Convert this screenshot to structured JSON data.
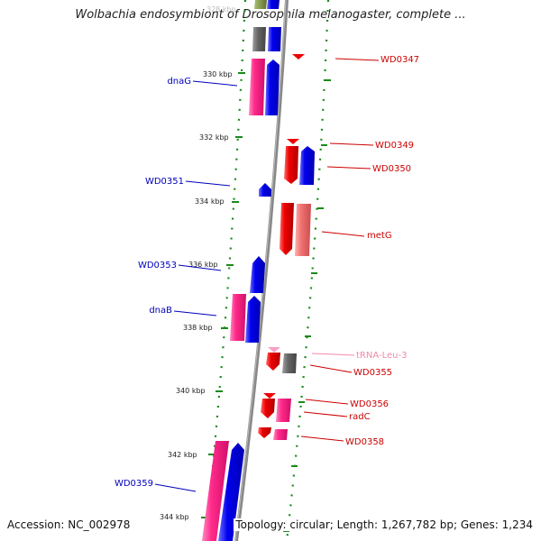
{
  "title": "Wolbachia endosymbiont of Drosophila melanogaster, complete ...",
  "footer": {
    "accession": "Accession: NC_002978",
    "topology": "Topology: circular; Length: 1,267,782 bp; Genes: 1,234"
  },
  "colors": {
    "forward_strand": "#0a0aee",
    "reverse_strand": "#ee0a0a",
    "rna": "#ff2a8a",
    "other": "#707070",
    "backbone": "#888888",
    "scale_ticks": "#1a8a1a",
    "left_label": "#0000bb",
    "right_label": "#cc0000",
    "trna_label": "#f08aa8"
  },
  "scale": {
    "top_partial": "328 kbp",
    "ticks": [
      "330 kbp",
      "332 kbp",
      "334 kbp",
      "336 kbp",
      "338 kbp",
      "340 kbp",
      "342 kbp",
      "344 kbp"
    ]
  },
  "genes_left": [
    {
      "name": "dnaG"
    },
    {
      "name": "WD0351"
    },
    {
      "name": "WD0353"
    },
    {
      "name": "dnaB"
    },
    {
      "name": "WD0359"
    }
  ],
  "genes_right": [
    {
      "name": "WD0347"
    },
    {
      "name": "WD0349"
    },
    {
      "name": "WD0350"
    },
    {
      "name": "metG"
    },
    {
      "name": "tRNA-Leu-3"
    },
    {
      "name": "WD0355"
    },
    {
      "name": "WD0356"
    },
    {
      "name": "radC"
    },
    {
      "name": "WD0358"
    }
  ]
}
